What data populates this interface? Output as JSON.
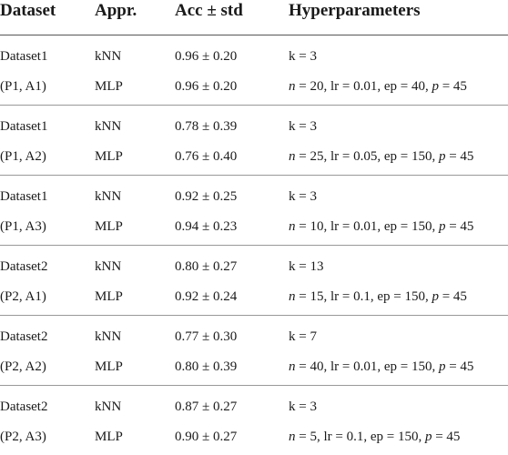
{
  "table": {
    "headers": [
      "Dataset",
      "Appr.",
      "Acc ± std",
      "Hyperparameters"
    ],
    "groups": [
      {
        "dataset": "Dataset1",
        "pair": "(P1, A1)",
        "rows": [
          {
            "approach": "kNN",
            "acc": "0.96 ± 0.20",
            "hyper": "k = 3"
          },
          {
            "approach": "MLP",
            "acc": "0.96 ± 0.20",
            "hyper": "n = 20, lr = 0.01, ep = 40, p = 45"
          }
        ]
      },
      {
        "dataset": "Dataset1",
        "pair": "(P1, A2)",
        "rows": [
          {
            "approach": "kNN",
            "acc": "0.78 ± 0.39",
            "hyper": "k = 3"
          },
          {
            "approach": "MLP",
            "acc": "0.76 ± 0.40",
            "hyper": "n = 25, lr = 0.05, ep = 150, p = 45"
          }
        ]
      },
      {
        "dataset": "Dataset1",
        "pair": "(P1, A3)",
        "rows": [
          {
            "approach": "kNN",
            "acc": "0.92 ± 0.25",
            "hyper": "k = 3"
          },
          {
            "approach": "MLP",
            "acc": "0.94 ± 0.23",
            "hyper": "n = 10, lr = 0.01, ep = 150, p = 45"
          }
        ]
      },
      {
        "dataset": "Dataset2",
        "pair": "(P2, A1)",
        "rows": [
          {
            "approach": "kNN",
            "acc": "0.80 ± 0.27",
            "hyper": "k = 13"
          },
          {
            "approach": "MLP",
            "acc": "0.92 ± 0.24",
            "hyper": "n = 15, lr = 0.1, ep = 150, p = 45"
          }
        ]
      },
      {
        "dataset": "Dataset2",
        "pair": "(P2, A2)",
        "rows": [
          {
            "approach": "kNN",
            "acc": "0.77 ± 0.30",
            "hyper": "k = 7"
          },
          {
            "approach": "MLP",
            "acc": "0.80 ± 0.39",
            "hyper": "n = 40, lr = 0.01, ep = 150, p = 45"
          }
        ]
      },
      {
        "dataset": "Dataset2",
        "pair": "(P2, A3)",
        "rows": [
          {
            "approach": "kNN",
            "acc": "0.87 ± 0.27",
            "hyper": "k = 3"
          },
          {
            "approach": "MLP",
            "acc": "0.90 ± 0.27",
            "hyper": "n = 5, lr = 0.1, ep = 150, p = 45"
          }
        ]
      }
    ]
  }
}
